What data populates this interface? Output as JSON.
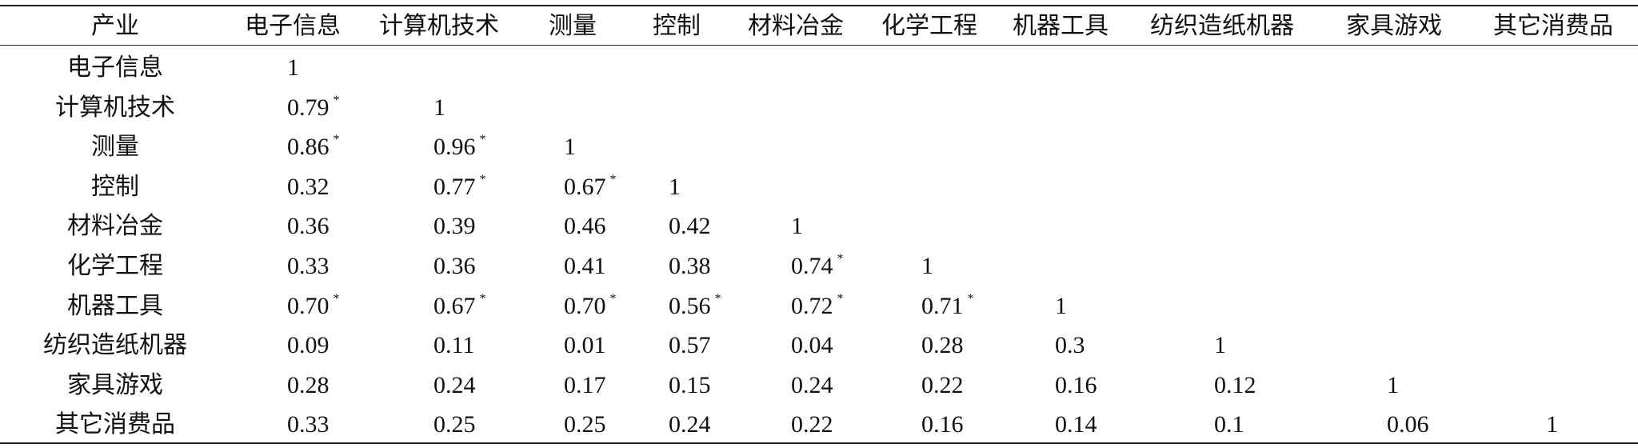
{
  "table": {
    "header": [
      "产业",
      "电子信息",
      "计算机技术",
      "测量",
      "控制",
      "材料冶金",
      "化学工程",
      "机器工具",
      "纺织造纸机器",
      "家具游戏",
      "其它消费品"
    ],
    "rows": [
      {
        "label": "电子信息",
        "cells": [
          "1"
        ]
      },
      {
        "label": "计算机技术",
        "cells": [
          {
            "value": "0.79",
            "note": "*"
          },
          "1"
        ]
      },
      {
        "label": "测量",
        "cells": [
          {
            "value": "0.86",
            "note": "*"
          },
          {
            "value": "0.96",
            "note": "*"
          },
          "1"
        ]
      },
      {
        "label": "控制",
        "cells": [
          "0.32",
          {
            "value": "0.77",
            "note": "*"
          },
          {
            "value": "0.67",
            "note": "*"
          },
          "1"
        ]
      },
      {
        "label": "材料冶金",
        "cells": [
          "0.36",
          "0.39",
          "0.46",
          "0.42",
          "1"
        ]
      },
      {
        "label": "化学工程",
        "cells": [
          "0.33",
          "0.36",
          "0.41",
          "0.38",
          {
            "value": "0.74",
            "note": "*"
          },
          "1"
        ]
      },
      {
        "label": "机器工具",
        "cells": [
          {
            "value": "0.70",
            "note": "*"
          },
          {
            "value": "0.67",
            "note": "*"
          },
          {
            "value": "0.70",
            "note": "*"
          },
          {
            "value": "0.56",
            "note": "*"
          },
          {
            "value": "0.72",
            "note": "*"
          },
          {
            "value": "0.71",
            "note": "*"
          },
          "1"
        ]
      },
      {
        "label": "纺织造纸机器",
        "cells": [
          "0.09",
          "0.11",
          "0.01",
          "0.57",
          "0.04",
          "0.28",
          "0.3",
          "1"
        ]
      },
      {
        "label": "家具游戏",
        "cells": [
          "0.28",
          "0.24",
          "0.17",
          "0.15",
          "0.24",
          "0.22",
          "0.16",
          "0.12",
          "1"
        ]
      },
      {
        "label": "其它消费品",
        "cells": [
          "0.33",
          "0.25",
          "0.25",
          "0.24",
          "0.22",
          "0.16",
          "0.14",
          "0.1",
          "0.06",
          "1"
        ]
      }
    ]
  }
}
